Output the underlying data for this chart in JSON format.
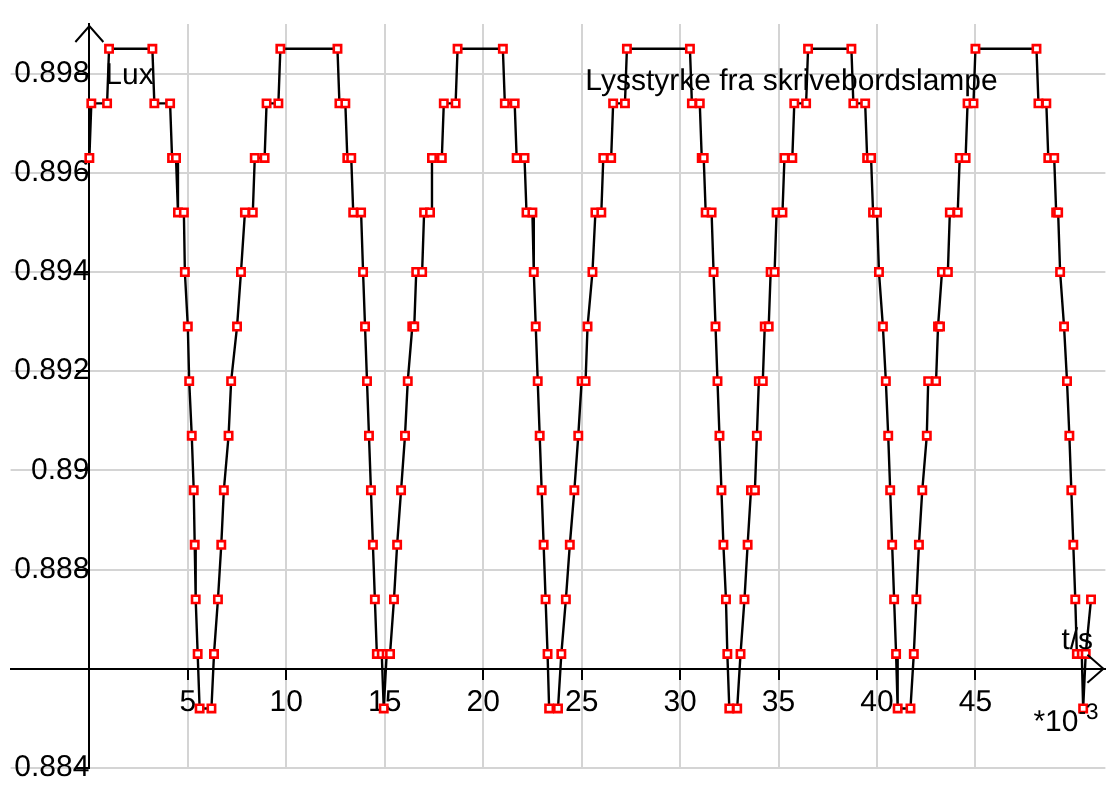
{
  "chart_data": {
    "type": "line",
    "title": "Lysstyrke fra skrivebordslampe",
    "xlabel": "t/s",
    "ylabel": "Lux",
    "annotations": [
      "*10$^{-3}$"
    ],
    "xlim": [
      -4,
      51.6
    ],
    "ylim": [
      0.884,
      0.899
    ],
    "xticks": [
      {
        "value": 0,
        "label": null
      },
      5,
      10,
      15,
      20,
      25,
      30,
      35,
      40,
      45
    ],
    "yticks": [
      0.884,
      {
        "value": 0.886,
        "label": null
      },
      0.888,
      0.89,
      0.892,
      0.894,
      0.896,
      0.898
    ],
    "grid": true,
    "legend": false,
    "marker": "square",
    "line_style": "solid",
    "series": [
      {
        "color": "#ff0000",
        "x": [
          0,
          0.1,
          0.9,
          1,
          3.2,
          3.3,
          4.1,
          4.2,
          4.4,
          4.5,
          4.8,
          4.85,
          5,
          5.07,
          5.2,
          5.3,
          5.35,
          5.4,
          5.5,
          5.6,
          6.2,
          6.33,
          6.53,
          6.7,
          6.83,
          7.07,
          7.2,
          7.5,
          7.7,
          7.9,
          8.3,
          8.4,
          8.9,
          9,
          9.6,
          9.7,
          12.6,
          12.7,
          13,
          13.1,
          13.3,
          13.4,
          13.8,
          13.9,
          14,
          14.1,
          14.2,
          14.3,
          14.4,
          14.5,
          14.6,
          14.85,
          14.95,
          15.1,
          15.27,
          15.47,
          15.63,
          15.83,
          16.03,
          16.17,
          16.4,
          16.5,
          16.6,
          16.9,
          17,
          17.3,
          17.4,
          17.9,
          18,
          18.6,
          18.7,
          21,
          21.1,
          21.6,
          21.7,
          22.1,
          22.2,
          22.5,
          22.57,
          22.67,
          22.77,
          22.87,
          22.97,
          23.07,
          23.17,
          23.27,
          23.35,
          23.8,
          23.97,
          24.2,
          24.4,
          24.63,
          24.83,
          25,
          25.2,
          25.3,
          25.55,
          25.7,
          26,
          26.1,
          26.5,
          26.6,
          27.2,
          27.3,
          30.5,
          30.6,
          31,
          31.1,
          31.2,
          31.3,
          31.6,
          31.7,
          31.8,
          31.9,
          32,
          32.1,
          32.2,
          32.33,
          32.4,
          32.5,
          32.9,
          33.07,
          33.27,
          33.43,
          33.6,
          33.8,
          33.9,
          34,
          34.2,
          34.3,
          34.5,
          34.6,
          34.8,
          34.9,
          35.2,
          35.3,
          35.7,
          35.8,
          36.4,
          36.5,
          38.7,
          38.8,
          39.4,
          39.5,
          39.7,
          39.8,
          40,
          40.1,
          40.3,
          40.45,
          40.57,
          40.67,
          40.77,
          40.87,
          40.97,
          41.05,
          41.7,
          41.87,
          42,
          42.13,
          42.3,
          42.53,
          42.6,
          43,
          43.1,
          43.2,
          43.3,
          43.6,
          43.7,
          44.1,
          44.2,
          44.5,
          44.6,
          44.9,
          45,
          48.1,
          48.2,
          48.6,
          48.7,
          49,
          49.1,
          49.2,
          49.3,
          49.5,
          49.65,
          49.77,
          49.87,
          49.97,
          50.07,
          50.15,
          50.4,
          50.47,
          50.6,
          50.87
        ],
        "values": [
          0.8963,
          0.8974,
          0.8974,
          0.8985,
          0.8985,
          0.8974,
          0.8974,
          0.8963,
          0.8963,
          0.8952,
          0.8952,
          0.894,
          0.8929,
          0.8918,
          0.8907,
          0.8896,
          0.8885,
          0.8874,
          0.8863,
          0.8852,
          0.8852,
          0.8863,
          0.8874,
          0.8885,
          0.8896,
          0.8907,
          0.8918,
          0.8929,
          0.894,
          0.8952,
          0.8952,
          0.8963,
          0.8963,
          0.8974,
          0.8974,
          0.8985,
          0.8985,
          0.8974,
          0.8974,
          0.8963,
          0.8963,
          0.8952,
          0.8952,
          0.894,
          0.8929,
          0.8918,
          0.8907,
          0.8896,
          0.8885,
          0.8874,
          0.8863,
          0.8863,
          0.8852,
          0.8863,
          0.8863,
          0.8874,
          0.8885,
          0.8896,
          0.8907,
          0.8918,
          0.8929,
          0.8929,
          0.894,
          0.894,
          0.8952,
          0.8952,
          0.8963,
          0.8963,
          0.8974,
          0.8974,
          0.8985,
          0.8985,
          0.8974,
          0.8974,
          0.8963,
          0.8963,
          0.8952,
          0.8952,
          0.894,
          0.8929,
          0.8918,
          0.8907,
          0.8896,
          0.8885,
          0.8874,
          0.8863,
          0.8852,
          0.8852,
          0.8863,
          0.8874,
          0.8885,
          0.8896,
          0.8907,
          0.8918,
          0.8918,
          0.8929,
          0.894,
          0.8952,
          0.8952,
          0.8963,
          0.8963,
          0.8974,
          0.8974,
          0.8985,
          0.8985,
          0.8974,
          0.8974,
          0.8963,
          0.8963,
          0.8952,
          0.8952,
          0.894,
          0.8929,
          0.8918,
          0.8907,
          0.8896,
          0.8885,
          0.8874,
          0.8863,
          0.8852,
          0.8852,
          0.8863,
          0.8874,
          0.8885,
          0.8896,
          0.8896,
          0.8907,
          0.8918,
          0.8918,
          0.8929,
          0.8929,
          0.894,
          0.894,
          0.8952,
          0.8952,
          0.8963,
          0.8963,
          0.8974,
          0.8974,
          0.8985,
          0.8985,
          0.8974,
          0.8974,
          0.8963,
          0.8963,
          0.8952,
          0.8952,
          0.894,
          0.8929,
          0.8918,
          0.8907,
          0.8896,
          0.8885,
          0.8874,
          0.8863,
          0.8852,
          0.8852,
          0.8863,
          0.8874,
          0.8885,
          0.8896,
          0.8907,
          0.8918,
          0.8918,
          0.8929,
          0.8929,
          0.894,
          0.894,
          0.8952,
          0.8952,
          0.8963,
          0.8963,
          0.8974,
          0.8974,
          0.8985,
          0.8985,
          0.8974,
          0.8974,
          0.8963,
          0.8963,
          0.8952,
          0.8952,
          0.894,
          0.8929,
          0.8918,
          0.8907,
          0.8896,
          0.8885,
          0.8874,
          0.8863,
          0.8863,
          0.8852,
          0.8863,
          0.8874
        ]
      }
    ]
  }
}
